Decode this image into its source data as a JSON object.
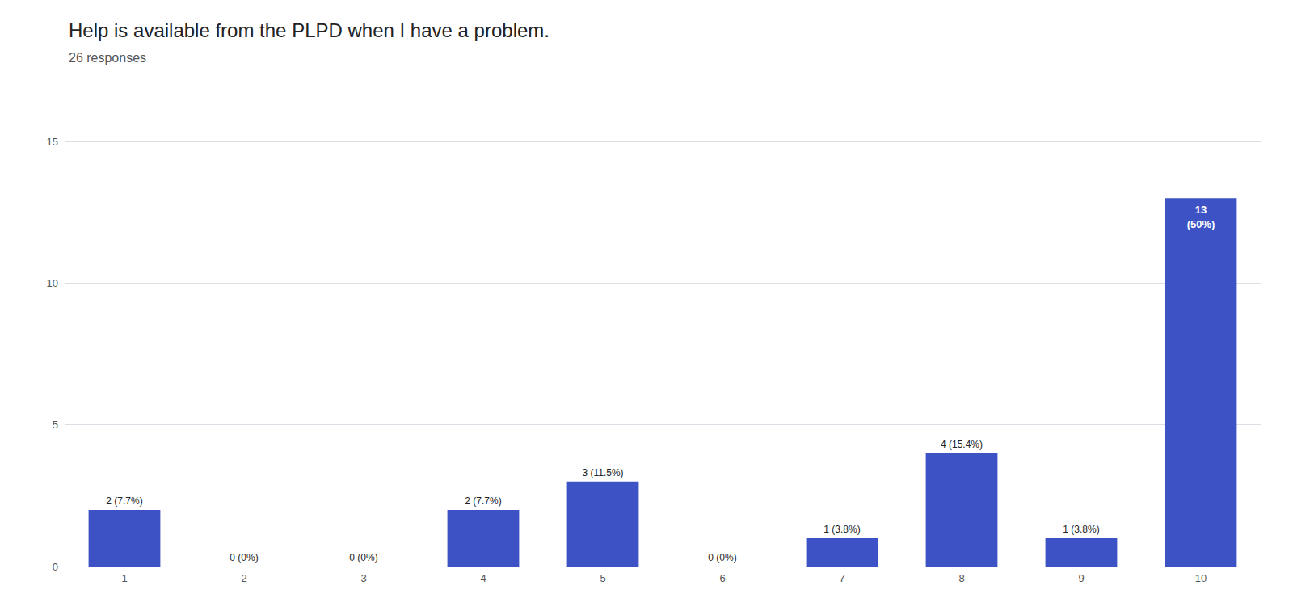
{
  "chart_data": {
    "type": "bar",
    "title": "Help is available from the PLPD when I have a problem.",
    "subtitle": "26 responses",
    "categories": [
      1,
      2,
      3,
      4,
      5,
      6,
      7,
      8,
      9,
      10
    ],
    "values": [
      2,
      0,
      0,
      2,
      3,
      0,
      1,
      4,
      1,
      13
    ],
    "value_labels": [
      "2 (7.7%)",
      "0 (0%)",
      "0 (0%)",
      "2 (7.7%)",
      "3 (11.5%)",
      "0 (0%)",
      "1 (3.8%)",
      "4 (15.4%)",
      "1 (3.8%)",
      "13\n(50%)"
    ],
    "color": "#3d53c5",
    "ylim": [
      0,
      16
    ],
    "yticks": [
      0,
      5,
      10,
      15
    ],
    "grid": true,
    "data_labels": true
  }
}
